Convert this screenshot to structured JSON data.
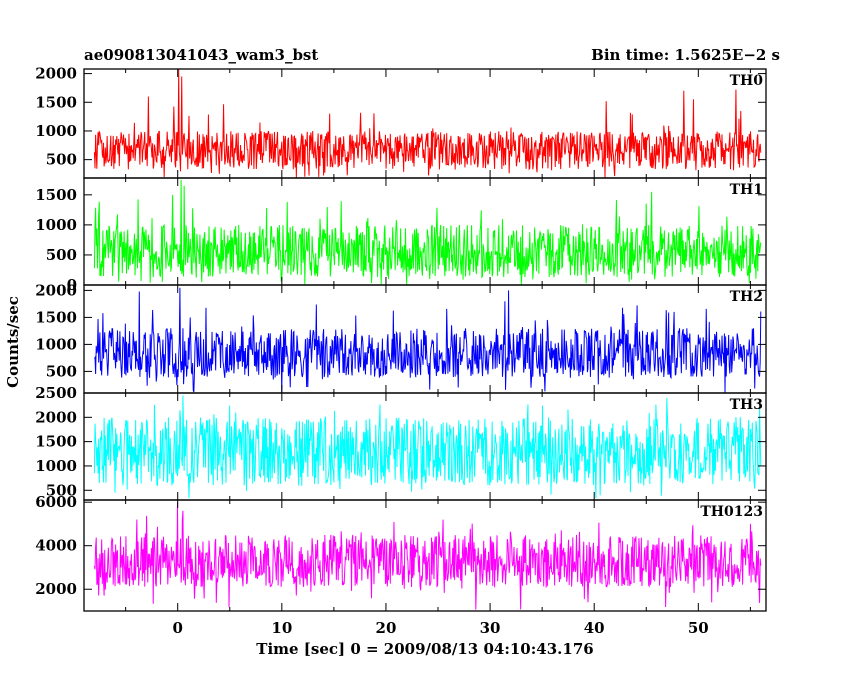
{
  "header": {
    "title": "ae090813041043_wam3_bst",
    "bin_time": "Bin time: 1.5625E−2 s"
  },
  "chart_data": {
    "type": "line",
    "xlabel": "Time [sec] 0 = 2009/08/13 04:10:43.176",
    "ylabel": "Counts/sec",
    "xlim": [
      -9,
      56.5
    ],
    "x_ticks": [
      0,
      10,
      20,
      30,
      40,
      50
    ],
    "x_range": [
      -8.0,
      56.0
    ],
    "panels": [
      {
        "name": "TH0",
        "color": "#ff0000",
        "ylim": [
          180,
          2080
        ],
        "y_ticks": [
          500,
          1000,
          1500,
          2000
        ],
        "baseline": 690,
        "low": 330,
        "high": 1000,
        "peaks": [
          {
            "x": 0.1,
            "y": 2080
          },
          {
            "x": 0.4,
            "y": 1950
          },
          {
            "x": -2.8,
            "y": 1600
          },
          {
            "x": 48.6,
            "y": 1700
          },
          {
            "x": 53.6,
            "y": 1720
          }
        ]
      },
      {
        "name": "TH1",
        "color": "#00ff00",
        "ylim": [
          0,
          1780
        ],
        "y_ticks": [
          0,
          500,
          1000,
          1500
        ],
        "baseline": 560,
        "low": 130,
        "high": 1000,
        "peaks": [
          {
            "x": 0.3,
            "y": 1750
          },
          {
            "x": 0.6,
            "y": 1650
          },
          {
            "x": -0.5,
            "y": 1500
          },
          {
            "x": 45.5,
            "y": 1550
          }
        ]
      },
      {
        "name": "TH2",
        "color": "#0000ff",
        "ylim": [
          100,
          2100
        ],
        "y_ticks": [
          500,
          1000,
          1500,
          2000
        ],
        "baseline": 800,
        "low": 380,
        "high": 1300,
        "peaks": [
          {
            "x": -3.7,
            "y": 1980
          },
          {
            "x": 0.2,
            "y": 2050
          },
          {
            "x": 31.8,
            "y": 2000
          },
          {
            "x": 31.4,
            "y": 1800
          }
        ]
      },
      {
        "name": "TH3",
        "color": "#00ffff",
        "ylim": [
          300,
          2500
        ],
        "y_ticks": [
          500,
          1000,
          1500,
          2000,
          2500
        ],
        "baseline": 1280,
        "low": 600,
        "high": 2000,
        "peaks": [
          {
            "x": 0.5,
            "y": 2450
          },
          {
            "x": 47.0,
            "y": 2400
          }
        ]
      },
      {
        "name": "TH0123",
        "color": "#ff00ff",
        "ylim": [
          1000,
          6100
        ],
        "y_ticks": [
          2000,
          4000,
          6000
        ],
        "baseline": 3200,
        "low": 2100,
        "high": 4500,
        "peaks": [
          {
            "x": 0.0,
            "y": 6000
          },
          {
            "x": 0.5,
            "y": 5600
          },
          {
            "x": 25.5,
            "y": 5200
          },
          {
            "x": 55.0,
            "y": 5000
          }
        ]
      }
    ]
  }
}
